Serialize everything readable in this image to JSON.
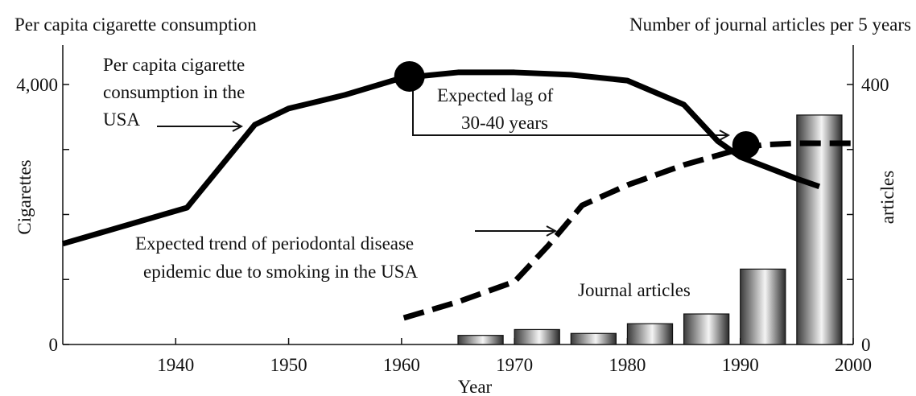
{
  "chart_data": {
    "type": "line",
    "title": "Per capita cigarette consumption",
    "y2_title": "Number of journal  articles per 5 years",
    "ylabel": "Cigarettes",
    "y2label": "articles",
    "xlabel": "Year",
    "xlim": [
      1930,
      2000
    ],
    "xticks": [
      1940,
      1950,
      1960,
      1970,
      1980,
      1990,
      2000
    ],
    "ylim": [
      0,
      4600
    ],
    "yticks": [
      0,
      {
        "value": 4000,
        "label": "4,000"
      }
    ],
    "yminorticks": [
      1000,
      2000,
      3000
    ],
    "y2lim": [
      0,
      460
    ],
    "y2ticks": [
      0,
      400
    ],
    "y2minorticks": [
      100,
      200,
      300
    ],
    "series": [
      {
        "color": "#000000",
        "style": "solid",
        "x": [
          1930,
          1941,
          1947,
          1950,
          1955,
          1960,
          1965,
          1970,
          1975,
          1980,
          1985,
          1988,
          1990,
          1995,
          1997
        ],
        "values": [
          1550,
          2105,
          3380,
          3630,
          3840,
          4100,
          4186,
          4186,
          4150,
          4060,
          3690,
          3130,
          2885,
          2550,
          2430
        ]
      },
      {
        "color": "#000000",
        "style": "dashed",
        "x": [
          1960.2,
          1965,
          1970,
          1973,
          1976,
          1980,
          1985,
          1990,
          1992,
          1995,
          2000
        ],
        "values": [
          409,
          656,
          966,
          1523,
          2142,
          2452,
          2762,
          3009,
          3071,
          3096,
          3096
        ]
      },
      {
        "type": "bar",
        "axis": "y2",
        "color": "#9a9a9a",
        "bar_width": 4,
        "x": [
          1967,
          1972,
          1977,
          1982,
          1987,
          1992,
          1997
        ],
        "values": [
          14,
          23,
          17,
          32,
          47,
          116,
          353
        ]
      }
    ],
    "points": {
      "x": [
        1960.7,
        1990.5
      ],
      "values": [
        4124,
        3071
      ],
      "color": "#000000"
    },
    "annotations": [
      {
        "lines": [
          "Per capita cigarette",
          "consumption in the",
          "USA"
        ]
      },
      {
        "lines": [
          "Expected lag of",
          "30-40 years"
        ]
      },
      {
        "lines": [
          "Expected trend of periodontal disease",
          "epidemic due to smoking in the USA"
        ]
      },
      {
        "lines": [
          "Journal articles"
        ]
      }
    ]
  }
}
